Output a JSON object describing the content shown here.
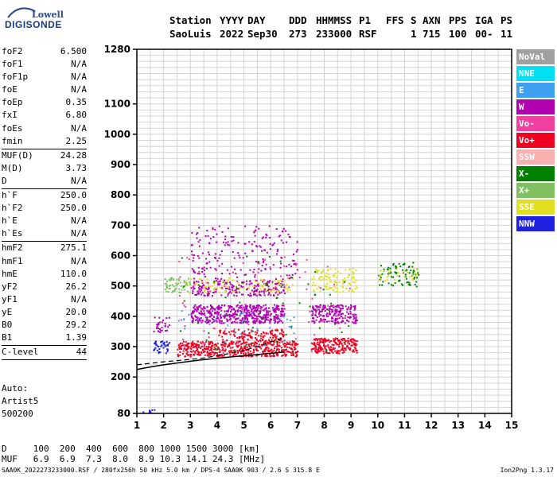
{
  "logo": {
    "line1": "Lowell",
    "line2": "DIGISONDE"
  },
  "header": {
    "labels": [
      "Station",
      "YYYY",
      "DAY",
      "DDD",
      "HHMMSS",
      "P1",
      "FFS",
      "S",
      "AXN",
      "PPS",
      "IGA",
      "PS"
    ],
    "values": [
      "SaoLuis",
      "2022",
      "Sep30",
      "273",
      "233000",
      "RSF",
      "",
      "1",
      "715",
      "100",
      "00-",
      "11"
    ]
  },
  "params": {
    "group1": [
      {
        "name": "foF2",
        "value": "6.500"
      },
      {
        "name": "foF1",
        "value": "N/A"
      },
      {
        "name": "foF1p",
        "value": "N/A"
      },
      {
        "name": "foE",
        "value": "N/A"
      },
      {
        "name": "foEp",
        "value": "0.35"
      },
      {
        "name": "fxI",
        "value": "6.80"
      },
      {
        "name": "foEs",
        "value": "N/A"
      },
      {
        "name": "fmin",
        "value": "2.25"
      }
    ],
    "group2": [
      {
        "name": "MUF(D)",
        "value": "24.28"
      },
      {
        "name": "M(D)",
        "value": "3.73"
      },
      {
        "name": "D",
        "value": "N/A"
      }
    ],
    "group3": [
      {
        "name": "h`F",
        "value": "250.0"
      },
      {
        "name": "h`F2",
        "value": "250.0"
      },
      {
        "name": "h`E",
        "value": "N/A"
      },
      {
        "name": "h`Es",
        "value": "N/A"
      }
    ],
    "group4": [
      {
        "name": "hmF2",
        "value": "275.1"
      },
      {
        "name": "hmF1",
        "value": "N/A"
      },
      {
        "name": "hmE",
        "value": "110.0"
      },
      {
        "name": "yF2",
        "value": "26.2"
      },
      {
        "name": "yF1",
        "value": "N/A"
      },
      {
        "name": "yE",
        "value": "20.0"
      },
      {
        "name": "B0",
        "value": "29.2"
      },
      {
        "name": "B1",
        "value": "1.39"
      }
    ],
    "group5": [
      {
        "name": "C-level",
        "value": "44"
      }
    ]
  },
  "auto": {
    "line1": "Auto:",
    "line2": "Artist5",
    "line3": "500200"
  },
  "legend": [
    {
      "label": "NoVal",
      "color": "#a0a0a0"
    },
    {
      "label": "NNE",
      "color": "#00e0f0"
    },
    {
      "label": "E",
      "color": "#40a0f0"
    },
    {
      "label": "W",
      "color": "#b000b0"
    },
    {
      "label": "Vo-",
      "color": "#f040a0"
    },
    {
      "label": "Vo+",
      "color": "#f00020"
    },
    {
      "label": "SSW",
      "color": "#f8b0b0"
    },
    {
      "label": "X-",
      "color": "#008000"
    },
    {
      "label": "X+",
      "color": "#80c060"
    },
    {
      "label": "SSE",
      "color": "#e0e020"
    },
    {
      "label": "NNW",
      "color": "#2020e0"
    }
  ],
  "bottom": {
    "d_row": "D     100  200  400  600  800 1000 1500 3000 [km]",
    "muf_row": "MUF   6.9  6.9  7.3  8.0  8.9 10.3 14.1 24.3 [MHz]",
    "info": "SAA0K_2022273233000.RSF / 280fx256h 50 kHz 5.0 km / DPS-4 SAA0K 903 / 2.6 S 315.8 E",
    "version": "Ion2Png 1.3.17"
  },
  "chart_data": {
    "type": "scatter",
    "x_ticks": [
      1,
      2,
      3,
      4,
      5,
      6,
      7,
      8,
      9,
      10,
      11,
      12,
      13,
      14,
      15
    ],
    "xlim": [
      1,
      15
    ],
    "y_ticks": [
      80,
      200,
      300,
      400,
      500,
      600,
      700,
      800,
      900,
      1000,
      1100,
      1280
    ],
    "ylim": [
      80,
      1280
    ],
    "grid": true,
    "legend": "right",
    "trace": {
      "x": [
        1.0,
        1.5,
        2.0,
        2.5,
        3.0,
        3.5,
        4.0,
        4.5,
        5.0,
        5.5,
        6.0,
        6.5
      ],
      "y": [
        225,
        233,
        240,
        246,
        252,
        257,
        262,
        266,
        270,
        274,
        278,
        282
      ]
    },
    "trace2": {
      "x": [
        1.0,
        1.5,
        2.0,
        2.5,
        3.0,
        3.5,
        4.0,
        4.5,
        5.0,
        5.5,
        6.0,
        6.5
      ],
      "y": [
        240,
        245,
        250,
        254,
        258,
        263,
        270,
        278,
        288,
        300,
        315,
        330
      ]
    },
    "echo_clusters": [
      {
        "x": [
          3.0,
          6.5
        ],
        "y": [
          380,
          440
        ],
        "color": "#b000b0",
        "n": 500
      },
      {
        "x": [
          3.0,
          6.5
        ],
        "y": [
          470,
          520
        ],
        "color": "#b000b0",
        "n": 220
      },
      {
        "x": [
          2.5,
          7.0
        ],
        "y": [
          270,
          320
        ],
        "color": "#f00020",
        "n": 500
      },
      {
        "x": [
          4.0,
          6.5
        ],
        "y": [
          320,
          360
        ],
        "color": "#f00020",
        "n": 120
      },
      {
        "x": [
          7.5,
          9.2
        ],
        "y": [
          380,
          440
        ],
        "color": "#b000b0",
        "n": 200
      },
      {
        "x": [
          7.5,
          9.2
        ],
        "y": [
          280,
          330
        ],
        "color": "#f00020",
        "n": 220
      },
      {
        "x": [
          7.5,
          9.2
        ],
        "y": [
          480,
          560
        ],
        "color": "#e0e020",
        "n": 120
      },
      {
        "x": [
          3.0,
          7.0
        ],
        "y": [
          520,
          700
        ],
        "color": "#b000b0",
        "n": 200
      },
      {
        "x": [
          2.8,
          6.8
        ],
        "y": [
          480,
          530
        ],
        "color": "#e0e020",
        "n": 100
      },
      {
        "x": [
          2.0,
          3.0
        ],
        "y": [
          480,
          530
        ],
        "color": "#80c060",
        "n": 60
      },
      {
        "x": [
          10.0,
          11.5
        ],
        "y": [
          500,
          580
        ],
        "color": "#008000",
        "n": 80
      },
      {
        "x": [
          10.0,
          11.5
        ],
        "y": [
          520,
          560
        ],
        "color": "#e0e020",
        "n": 30
      },
      {
        "x": [
          1.6,
          2.2
        ],
        "y": [
          280,
          320
        ],
        "color": "#2020e0",
        "n": 40
      },
      {
        "x": [
          1.6,
          2.2
        ],
        "y": [
          350,
          400
        ],
        "color": "#b000b0",
        "n": 30
      },
      {
        "x": [
          2.5,
          7.0
        ],
        "y": [
          300,
          420
        ],
        "color": "#40a0f0",
        "n": 40
      },
      {
        "x": [
          2.5,
          9.0
        ],
        "y": [
          280,
          600
        ],
        "color": "#008000",
        "n": 60
      },
      {
        "x": [
          2.5,
          9.0
        ],
        "y": [
          280,
          600
        ],
        "color": "#f040a0",
        "n": 80
      },
      {
        "x": [
          1.1,
          1.7
        ],
        "y": [
          85,
          95
        ],
        "color": "#2020e0",
        "n": 10
      }
    ]
  }
}
